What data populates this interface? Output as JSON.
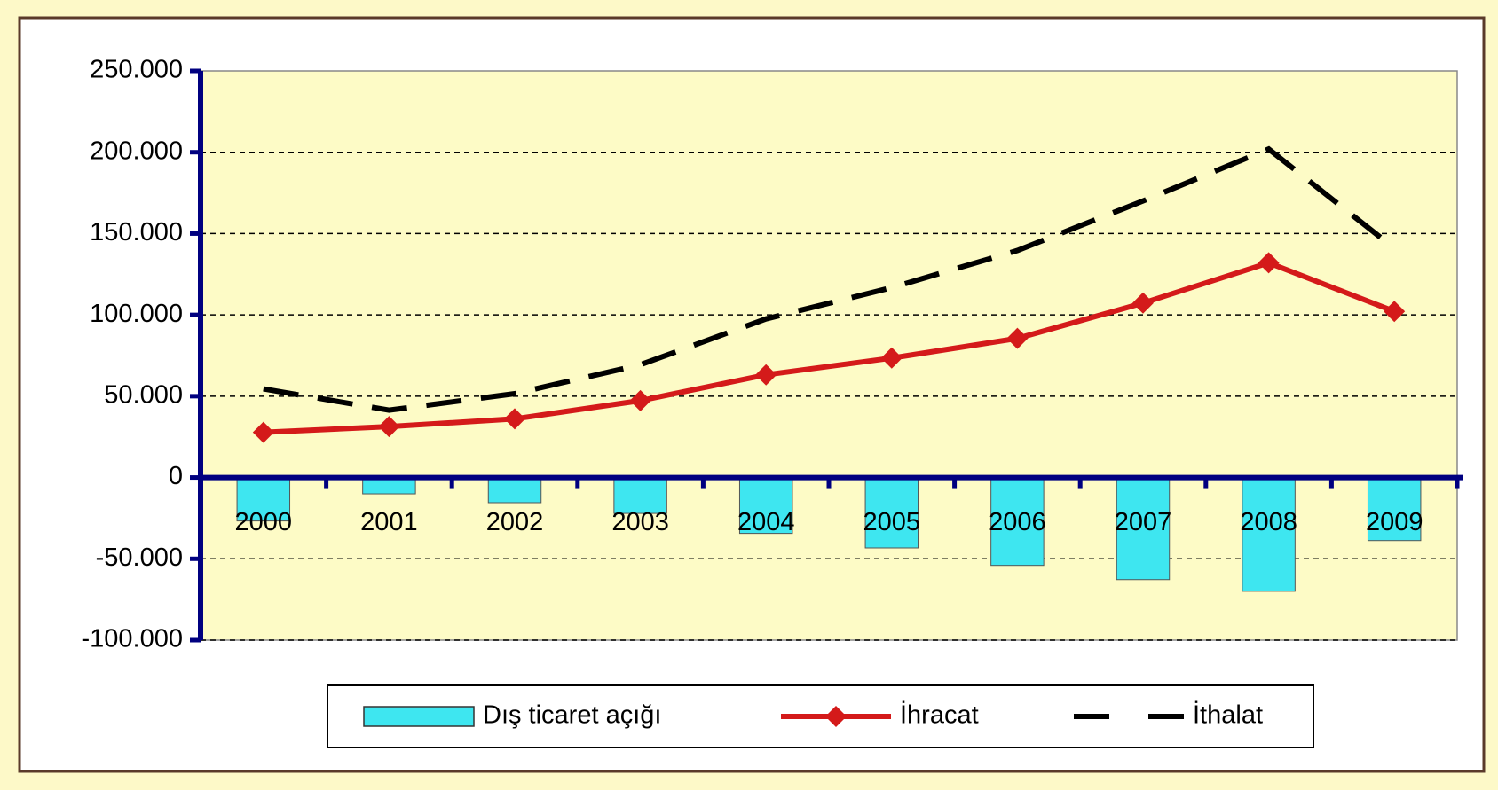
{
  "chart_data": {
    "type": "bar_line",
    "categories": [
      "2000",
      "2001",
      "2002",
      "2003",
      "2004",
      "2005",
      "2006",
      "2007",
      "2008",
      "2009"
    ],
    "series": [
      {
        "name": "Dış ticaret açığı",
        "type": "bar",
        "color": "#3ee6f0",
        "values": [
          -26728,
          -10065,
          -15495,
          -22087,
          -34373,
          -43298,
          -54041,
          -62791,
          -69937,
          -38785
        ]
      },
      {
        "name": "İhracat",
        "type": "line",
        "color": "#d41a1a",
        "marker": "diamond",
        "values": [
          27775,
          31334,
          36059,
          47253,
          63167,
          73476,
          85535,
          107272,
          132027,
          102143
        ]
      },
      {
        "name": "İthalat",
        "type": "line",
        "color": "#000000",
        "dashed": true,
        "values": [
          54503,
          41399,
          51554,
          69340,
          97540,
          116774,
          139576,
          170063,
          201964,
          140928
        ]
      }
    ],
    "ylim": [
      -100000,
      250000
    ],
    "yticks": [
      {
        "value": -100000,
        "label": "-100.000"
      },
      {
        "value": -50000,
        "label": "-50.000"
      },
      0,
      {
        "value": 50000,
        "label": "50.000"
      },
      {
        "value": 100000,
        "label": "100.000"
      },
      {
        "value": 150000,
        "label": "150.000"
      },
      {
        "value": 200000,
        "label": "200.000"
      },
      {
        "value": 250000,
        "label": "250.000"
      }
    ],
    "grid": true,
    "legend": "bottom"
  }
}
